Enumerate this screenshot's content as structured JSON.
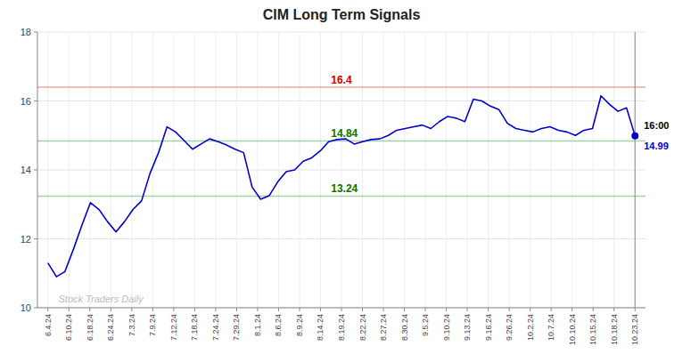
{
  "chart_data": {
    "type": "line",
    "title": "CIM Long Term Signals",
    "watermark": "Stock Traders Daily",
    "x": [
      0,
      0.405797,
      0.811594,
      1.217391,
      1.623188,
      2.028986,
      2.434783,
      2.84058,
      3.246377,
      3.652174,
      4.057971,
      4.463768,
      4.869565,
      5.275362,
      5.681159,
      6.086957,
      6.492754,
      6.898551,
      7.304348,
      7.710145,
      8.115942,
      8.521739,
      8.927536,
      9.333333,
      9.73913,
      10.144928,
      10.550725,
      10.956522,
      11.362319,
      11.768116,
      12.173913,
      12.57971,
      12.985507,
      13.391304,
      13.797101,
      14.202899,
      14.608696,
      15.014493,
      15.42029,
      15.826087,
      16.231884,
      16.637681,
      17.043478,
      17.449275,
      17.855072,
      18.26087,
      18.666667,
      19.072464,
      19.478261,
      19.884058,
      20.289855,
      20.695652,
      21.101449,
      21.507246,
      21.913043,
      22.318841,
      22.724638,
      23.130435,
      23.536232,
      23.942029,
      24.347826,
      24.753623,
      25.15942,
      25.565217,
      25.971014,
      26.376812,
      26.782609,
      27.188406,
      27.594203,
      28
    ],
    "values": [
      11.3,
      10.9,
      11.05,
      11.7,
      12.4,
      13.05,
      12.85,
      12.5,
      12.2,
      12.5,
      12.85,
      13.1,
      13.9,
      14.5,
      15.25,
      15.1,
      14.85,
      14.6,
      14.75,
      14.9,
      14.82,
      14.72,
      14.6,
      14.5,
      13.5,
      13.15,
      13.25,
      13.65,
      13.95,
      14.0,
      14.25,
      14.35,
      14.55,
      14.82,
      14.88,
      14.9,
      14.75,
      14.82,
      14.88,
      14.9,
      15.0,
      15.15,
      15.2,
      15.25,
      15.3,
      15.2,
      15.4,
      15.55,
      15.5,
      15.4,
      16.05,
      16.0,
      15.85,
      15.75,
      15.35,
      15.2,
      15.15,
      15.1,
      15.2,
      15.25,
      15.15,
      15.1,
      15.0,
      15.15,
      15.2,
      16.15,
      15.9,
      15.7,
      15.8,
      14.99
    ],
    "color": "#0000cc",
    "xlim": [
      -0.5,
      28.5
    ],
    "xticks": [
      {
        "value": 0,
        "label": "6.4.24"
      },
      {
        "value": 1,
        "label": "6.10.24"
      },
      {
        "value": 2,
        "label": "6.18.24"
      },
      {
        "value": 3,
        "label": "6.24.24"
      },
      {
        "value": 4,
        "label": "7.3.24"
      },
      {
        "value": 5,
        "label": "7.9.24"
      },
      {
        "value": 6,
        "label": "7.12.24"
      },
      {
        "value": 7,
        "label": "7.18.24"
      },
      {
        "value": 8,
        "label": "7.24.24"
      },
      {
        "value": 9,
        "label": "7.29.24"
      },
      {
        "value": 10,
        "label": "8.1.24"
      },
      {
        "value": 11,
        "label": "8.6.24"
      },
      {
        "value": 12,
        "label": "8.9.24"
      },
      {
        "value": 13,
        "label": "8.14.24"
      },
      {
        "value": 14,
        "label": "8.19.24"
      },
      {
        "value": 15,
        "label": "8.22.24"
      },
      {
        "value": 16,
        "label": "8.27.24"
      },
      {
        "value": 17,
        "label": "8.30.24"
      },
      {
        "value": 18,
        "label": "9.5.24"
      },
      {
        "value": 19,
        "label": "9.10.24"
      },
      {
        "value": 20,
        "label": "9.13.24"
      },
      {
        "value": 21,
        "label": "9.16.24"
      },
      {
        "value": 22,
        "label": "9.26.24"
      },
      {
        "value": 23,
        "label": "10.2.24"
      },
      {
        "value": 24,
        "label": "10.7.24"
      },
      {
        "value": 25,
        "label": "10.10.24"
      },
      {
        "value": 26,
        "label": "10.15.24"
      },
      {
        "value": 27,
        "label": "10.18.24"
      },
      {
        "value": 28,
        "label": "10.23.24"
      }
    ],
    "ylim": [
      10,
      18
    ],
    "yticks": [
      10,
      12,
      14,
      16,
      18
    ],
    "grid": true,
    "reference_lines": [
      {
        "value": 16.4,
        "label": "16.4",
        "color": "#cc0000"
      },
      {
        "value": 14.84,
        "label": "14.84",
        "color": "#007700"
      },
      {
        "value": 13.24,
        "label": "13.24",
        "color": "#007700"
      }
    ],
    "vline": 28,
    "annotations": [
      {
        "text": "16:00",
        "color": "#000000"
      },
      {
        "text": "14.99",
        "color": "#0000cc"
      }
    ]
  }
}
